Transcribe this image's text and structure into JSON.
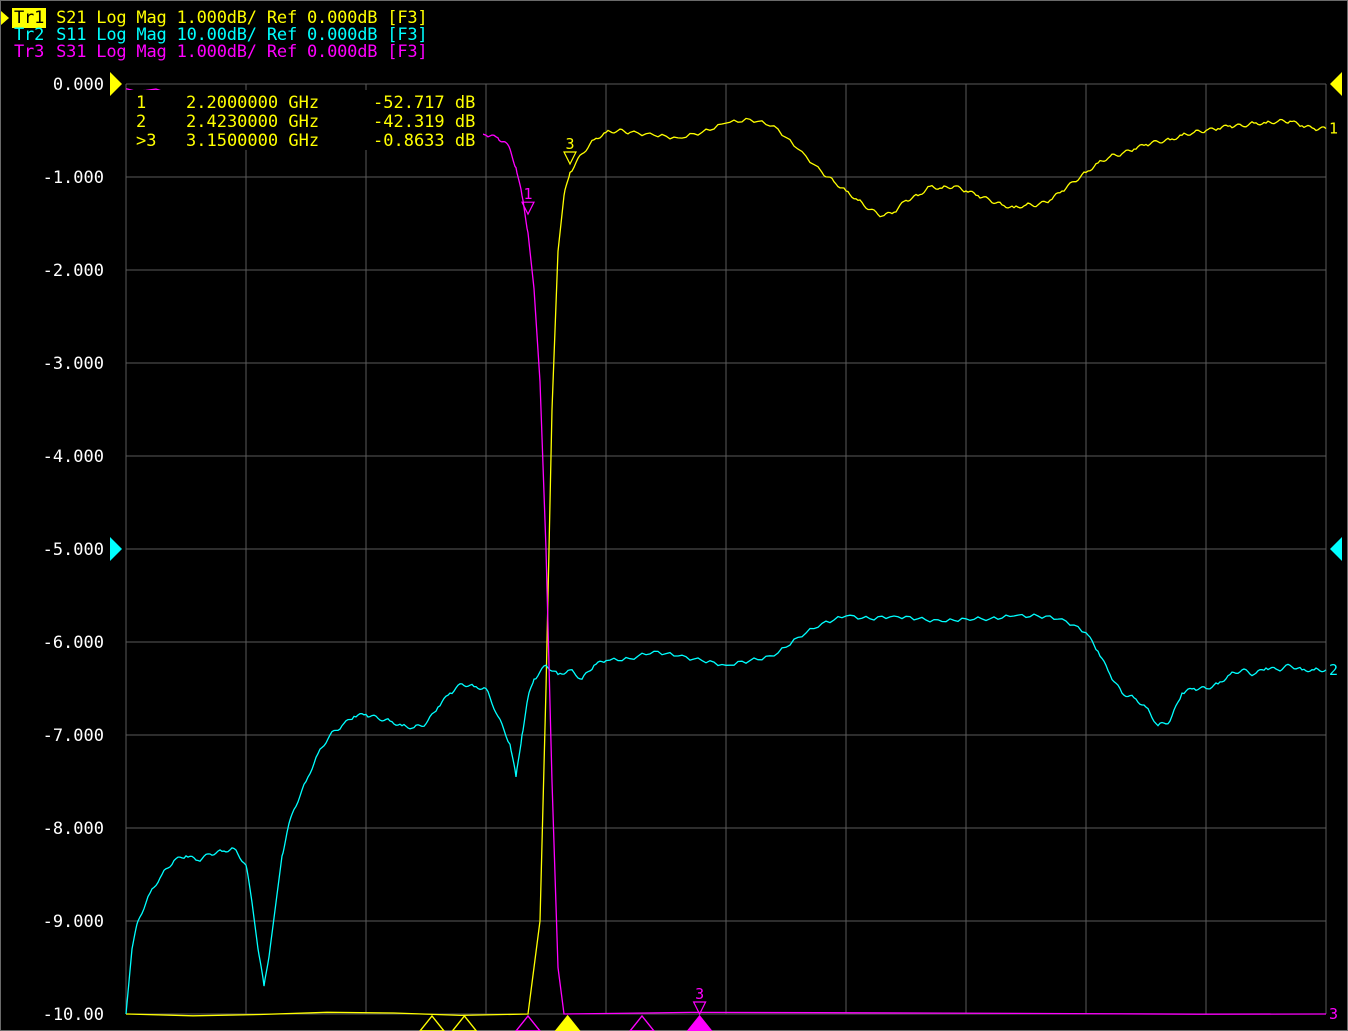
{
  "window": {
    "traces": [
      {
        "tag": "Tr1",
        "text": " S21 Log Mag 1.000dB/ Ref 0.000dB [F3]",
        "color": "#ffff00",
        "active": true
      },
      {
        "tag": "Tr2",
        "text": " S11 Log Mag 10.00dB/ Ref 0.000dB [F3]",
        "color": "#00ffff",
        "active": false
      },
      {
        "tag": "Tr3",
        "text": " S31 Log Mag 1.000dB/ Ref 0.000dB [F3]",
        "color": "#ff00ff",
        "active": false
      }
    ],
    "markers": [
      {
        "label": "1",
        "freq": "2.2000000 GHz",
        "value": "-52.717 dB"
      },
      {
        "label": "2",
        "freq": "2.4230000 GHz",
        "value": "-42.319 dB"
      },
      {
        "label": ">3",
        "freq": "3.1500000 GHz",
        "value": "-0.8633 dB"
      }
    ]
  },
  "chart_data": {
    "type": "line",
    "title": "",
    "xlabel": "",
    "ylabel": "",
    "y_tick_labels": [
      "0.000",
      "-1.000",
      "-2.000",
      "-3.000",
      "-4.000",
      "-5.000",
      "-6.000",
      "-7.000",
      "-8.000",
      "-9.000",
      "-10.00"
    ],
    "ylim": [
      -10,
      0
    ],
    "xlim": [
      0,
      10
    ],
    "x_divisions": 10,
    "y_divisions": 10,
    "grid": true,
    "series": [
      {
        "name": "S21",
        "color": "#ffff00",
        "end_label": "1",
        "x": [
          0,
          3.35,
          3.45,
          3.5,
          3.55,
          3.6,
          3.65,
          3.7,
          3.8,
          3.9,
          4.0,
          4.1,
          4.2,
          4.4,
          4.6,
          4.8,
          5.0,
          5.2,
          5.4,
          5.6,
          5.8,
          5.9,
          6.0,
          6.1,
          6.2,
          6.3,
          6.4,
          6.5,
          6.6,
          6.7,
          6.8,
          6.9,
          7.0,
          7.1,
          7.2,
          7.3,
          7.4,
          7.5,
          7.6,
          7.7,
          7.8,
          7.9,
          8.0,
          8.1,
          8.2,
          8.3,
          8.4,
          8.5,
          8.6,
          8.7,
          8.8,
          8.9,
          9.0,
          9.1,
          9.2,
          9.3,
          9.4,
          9.5,
          9.6,
          9.7,
          9.8,
          9.9,
          10.0
        ],
        "y": [
          -10,
          -10,
          -9.0,
          -6.5,
          -3.5,
          -1.8,
          -1.2,
          -0.95,
          -0.75,
          -0.6,
          -0.52,
          -0.5,
          -0.52,
          -0.55,
          -0.58,
          -0.52,
          -0.42,
          -0.38,
          -0.45,
          -0.7,
          -0.95,
          -1.05,
          -1.15,
          -1.25,
          -1.35,
          -1.42,
          -1.38,
          -1.25,
          -1.2,
          -1.1,
          -1.12,
          -1.1,
          -1.15,
          -1.2,
          -1.25,
          -1.3,
          -1.33,
          -1.3,
          -1.3,
          -1.25,
          -1.15,
          -1.05,
          -0.95,
          -0.85,
          -0.78,
          -0.75,
          -0.7,
          -0.65,
          -0.62,
          -0.6,
          -0.55,
          -0.52,
          -0.5,
          -0.48,
          -0.45,
          -0.45,
          -0.42,
          -0.42,
          -0.4,
          -0.4,
          -0.45,
          -0.48,
          -0.48
        ]
      },
      {
        "name": "S11",
        "color": "#00ffff",
        "end_label": "2",
        "x": [
          0,
          0.05,
          0.1,
          0.2,
          0.3,
          0.4,
          0.5,
          0.6,
          0.7,
          0.8,
          0.9,
          1.0,
          1.05,
          1.1,
          1.15,
          1.2,
          1.25,
          1.3,
          1.35,
          1.4,
          1.5,
          1.6,
          1.7,
          1.8,
          1.9,
          2.0,
          2.1,
          2.2,
          2.3,
          2.4,
          2.5,
          2.6,
          2.7,
          2.8,
          2.9,
          3.0,
          3.1,
          3.2,
          3.25,
          3.3,
          3.35,
          3.4,
          3.5,
          3.6,
          3.7,
          3.8,
          3.9,
          4.0,
          4.2,
          4.4,
          4.6,
          4.8,
          5.0,
          5.2,
          5.4,
          5.6,
          5.8,
          6.0,
          6.2,
          6.4,
          6.6,
          6.8,
          7.0,
          7.2,
          7.4,
          7.6,
          7.8,
          8.0,
          8.1,
          8.2,
          8.3,
          8.4,
          8.5,
          8.6,
          8.7,
          8.8,
          8.9,
          9.0,
          9.1,
          9.2,
          9.3,
          9.4,
          9.5,
          9.6,
          9.7,
          9.8,
          9.9,
          10.0
        ],
        "y": [
          -10,
          -9.3,
          -9.0,
          -8.7,
          -8.5,
          -8.35,
          -8.3,
          -8.35,
          -8.28,
          -8.25,
          -8.22,
          -8.4,
          -8.8,
          -9.3,
          -9.7,
          -9.3,
          -8.8,
          -8.3,
          -8.0,
          -7.8,
          -7.5,
          -7.2,
          -7.0,
          -6.9,
          -6.8,
          -6.78,
          -6.82,
          -6.85,
          -6.9,
          -6.92,
          -6.88,
          -6.7,
          -6.55,
          -6.45,
          -6.48,
          -6.5,
          -6.8,
          -7.1,
          -7.45,
          -7.0,
          -6.6,
          -6.4,
          -6.25,
          -6.35,
          -6.3,
          -6.4,
          -6.25,
          -6.2,
          -6.18,
          -6.1,
          -6.15,
          -6.2,
          -6.25,
          -6.2,
          -6.15,
          -5.95,
          -5.8,
          -5.72,
          -5.75,
          -5.72,
          -5.75,
          -5.78,
          -5.75,
          -5.75,
          -5.72,
          -5.72,
          -5.75,
          -5.9,
          -6.1,
          -6.35,
          -6.55,
          -6.6,
          -6.7,
          -6.9,
          -6.85,
          -6.55,
          -6.5,
          -6.5,
          -6.45,
          -6.35,
          -6.3,
          -6.35,
          -6.28,
          -6.3,
          -6.25,
          -6.3,
          -6.3,
          -6.3
        ]
      },
      {
        "name": "S31",
        "color": "#ff00ff",
        "end_label": "3",
        "x": [
          0,
          0.5,
          1.0,
          1.5,
          2.0,
          2.5,
          2.8,
          3.0,
          3.1,
          3.15,
          3.2,
          3.25,
          3.3,
          3.35,
          3.4,
          3.45,
          3.5,
          3.55,
          3.6,
          3.65,
          10.0
        ],
        "y": [
          -0.05,
          -0.1,
          -0.15,
          -0.2,
          -0.3,
          -0.42,
          -0.5,
          -0.55,
          -0.58,
          -0.62,
          -0.7,
          -0.9,
          -1.2,
          -1.6,
          -2.2,
          -3.2,
          -5.0,
          -7.5,
          -9.5,
          -10,
          -10
        ]
      }
    ],
    "trace_markers": [
      {
        "series": "S21",
        "label": "3",
        "x": 3.7,
        "y": -0.86
      },
      {
        "series": "S31",
        "label": "1",
        "x": 3.35,
        "y": -1.4
      },
      {
        "series": "S31",
        "label": "3",
        "x": 4.78,
        "y": -10
      }
    ],
    "stimulus_markers": [
      {
        "x": 2.55,
        "color": "#ffff00",
        "filled": false
      },
      {
        "x": 2.82,
        "color": "#ffff00",
        "filled": false
      },
      {
        "x": 3.35,
        "color": "#ff00ff",
        "filled": false
      },
      {
        "x": 3.68,
        "color": "#ffff00",
        "filled": true
      },
      {
        "x": 4.3,
        "color": "#ff00ff",
        "filled": false
      },
      {
        "x": 4.78,
        "color": "#ff00ff",
        "filled": true
      }
    ],
    "reference_markers": [
      {
        "side": "left",
        "y": 0,
        "color": "#ffff00"
      },
      {
        "side": "left",
        "y": -5,
        "color": "#00ffff"
      },
      {
        "side": "right",
        "y": 0,
        "color": "#ffff00"
      },
      {
        "side": "right",
        "y": -5,
        "color": "#00ffff"
      }
    ]
  }
}
